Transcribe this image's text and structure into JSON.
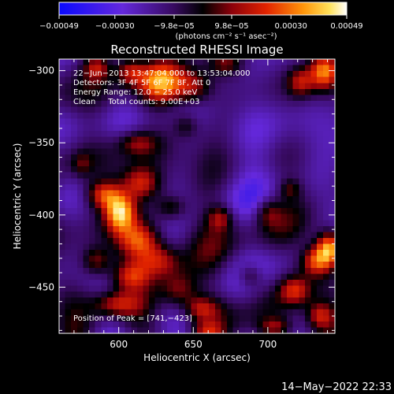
{
  "chart_data": {
    "type": "heatmap",
    "title": "Reconstructed RHESSI Image",
    "xlabel": "Heliocentric X (arcsec)",
    "ylabel": "Heliocentric Y (arcsec)",
    "xlim": [
      560,
      745
    ],
    "ylim": [
      -482,
      -292
    ],
    "xticks": [
      600,
      650,
      700
    ],
    "xtick_labels": [
      "600",
      "650",
      "700"
    ],
    "yticks": [
      -300,
      -350,
      -400,
      -450
    ],
    "ytick_labels": [
      "−300",
      "−350",
      "−400",
      "−450"
    ],
    "colorbar": {
      "ticks": [
        -0.00049,
        -0.0003,
        -9.8e-05,
        9.8e-05,
        0.0003,
        0.00049
      ],
      "tick_labels": [
        "−0.00049",
        "−0.00030",
        "−9.8e−05",
        "9.8e−05",
        "0.00030",
        "0.00049"
      ],
      "min": -0.00049,
      "max": 0.00049,
      "unit_label": "(photons cm⁻² s⁻¹ asec⁻²)"
    },
    "annotations": [
      "22−Jun−2013 13:47:04.000 to 13:53:04.000",
      "Detectors: 3F 4F 5F 6F 7F 8F, Att 0",
      "Energy Range: 12.0 − 25.0 keV",
      "Clean     Total counts: 9.00E+03"
    ],
    "peak_label": "Position of Peak = [741,−423]",
    "peak": [
      741,
      -423
    ],
    "sources": [
      {
        "x": 601,
        "y": -398,
        "sx": 7,
        "sy": 9,
        "amp": 0.00049
      },
      {
        "x": 590,
        "y": -386,
        "sx": 8,
        "sy": 7,
        "amp": 0.00036
      },
      {
        "x": 615,
        "y": -378,
        "sx": 9,
        "sy": 8,
        "amp": 0.00032
      },
      {
        "x": 614,
        "y": -418,
        "sx": 10,
        "sy": 9,
        "amp": 0.00036
      },
      {
        "x": 628,
        "y": -432,
        "sx": 10,
        "sy": 8,
        "amp": 0.0003
      },
      {
        "x": 608,
        "y": -442,
        "sx": 9,
        "sy": 7,
        "amp": 0.00028
      },
      {
        "x": 598,
        "y": -462,
        "sx": 11,
        "sy": 6,
        "amp": 0.00026
      },
      {
        "x": 640,
        "y": -452,
        "sx": 9,
        "sy": 9,
        "amp": 0.00028
      },
      {
        "x": 655,
        "y": -465,
        "sx": 8,
        "sy": 6,
        "amp": 0.00024
      },
      {
        "x": 585,
        "y": -432,
        "sx": 7,
        "sy": 7,
        "amp": 0.00026
      },
      {
        "x": 612,
        "y": -350,
        "sx": 9,
        "sy": 6,
        "amp": 0.00022
      },
      {
        "x": 635,
        "y": -395,
        "sx": 7,
        "sy": 6,
        "amp": 0.0002
      },
      {
        "x": 628,
        "y": -308,
        "sx": 10,
        "sy": 10,
        "amp": 0.00038
      },
      {
        "x": 608,
        "y": -300,
        "sx": 7,
        "sy": 7,
        "amp": 0.0003
      },
      {
        "x": 585,
        "y": -298,
        "sx": 6,
        "sy": 6,
        "amp": 0.00024
      },
      {
        "x": 650,
        "y": -312,
        "sx": 9,
        "sy": 8,
        "amp": 0.00026
      },
      {
        "x": 672,
        "y": -295,
        "sx": 8,
        "sy": 6,
        "amp": 0.00022
      },
      {
        "x": 738,
        "y": -300,
        "sx": 7,
        "sy": 9,
        "amp": 0.00046
      },
      {
        "x": 722,
        "y": -308,
        "sx": 6,
        "sy": 7,
        "amp": 0.00024
      },
      {
        "x": 741,
        "y": -423,
        "sx": 6,
        "sy": 8,
        "amp": 0.0005
      },
      {
        "x": 732,
        "y": -432,
        "sx": 7,
        "sy": 7,
        "amp": 0.00036
      },
      {
        "x": 718,
        "y": -452,
        "sx": 7,
        "sy": 7,
        "amp": 0.00028
      },
      {
        "x": 705,
        "y": -478,
        "sx": 8,
        "sy": 5,
        "amp": 0.00026
      },
      {
        "x": 688,
        "y": -442,
        "sx": 6,
        "sy": 6,
        "amp": 0.00022
      },
      {
        "x": 668,
        "y": -402,
        "sx": 6,
        "sy": 6,
        "amp": 0.00024
      },
      {
        "x": 700,
        "y": -398,
        "sx": 6,
        "sy": 7,
        "amp": 0.00018
      },
      {
        "x": 715,
        "y": -382,
        "sx": 5,
        "sy": 5,
        "amp": 0.00016
      },
      {
        "x": 645,
        "y": -338,
        "sx": 6,
        "sy": 6,
        "amp": 0.00016
      },
      {
        "x": 735,
        "y": -470,
        "sx": 6,
        "sy": 6,
        "amp": 0.00024
      },
      {
        "x": 660,
        "y": -480,
        "sx": 7,
        "sy": 4,
        "amp": 0.0002
      },
      {
        "x": 575,
        "y": -365,
        "sx": 5,
        "sy": 6,
        "amp": 0.00014
      }
    ]
  },
  "footer": {
    "timestamp": "14−May−2022 22:33"
  }
}
